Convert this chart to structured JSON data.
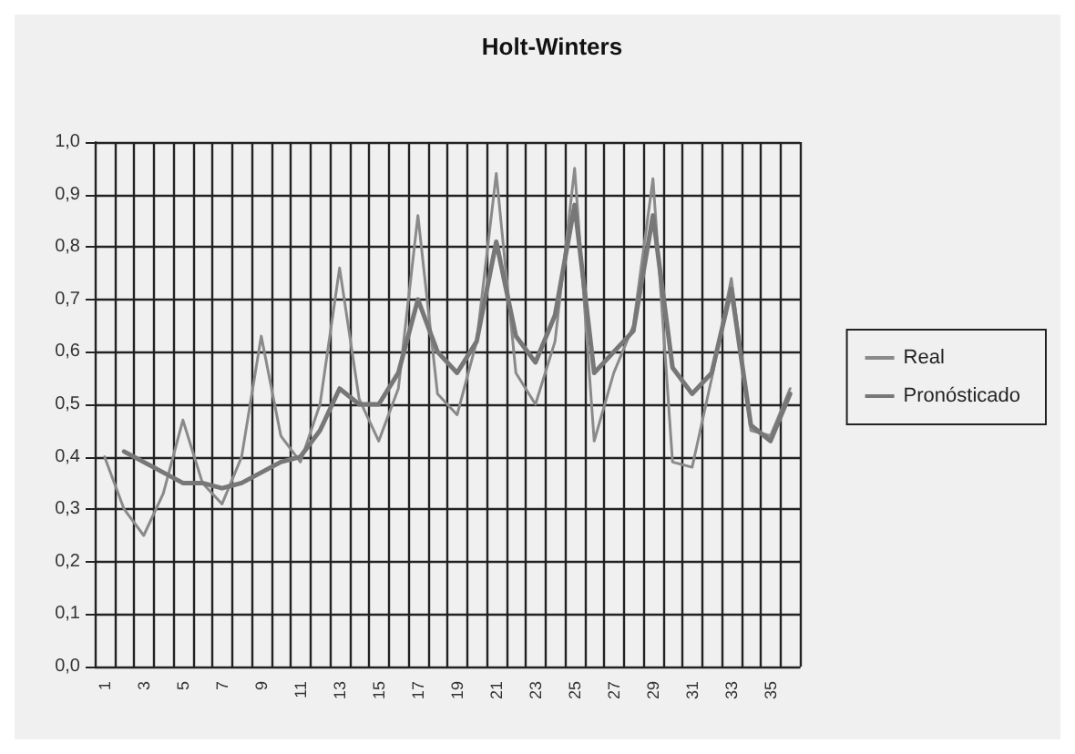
{
  "chart_data": {
    "type": "line",
    "title": "Holt-Winters",
    "categories": [
      "1",
      null,
      "3",
      null,
      "5",
      null,
      "7",
      null,
      "9",
      null,
      "11",
      null,
      "13",
      null,
      "15",
      null,
      "17",
      null,
      "19",
      null,
      "21",
      null,
      "23",
      null,
      "25",
      null,
      "27",
      null,
      "29",
      null,
      "31",
      null,
      "33",
      null,
      "35",
      null
    ],
    "series": [
      {
        "name": "Real",
        "color": "#8a8a8a",
        "values": [
          0.4,
          0.3,
          0.25,
          0.33,
          0.47,
          0.35,
          0.31,
          0.4,
          0.63,
          0.44,
          0.39,
          0.5,
          0.76,
          0.51,
          0.43,
          0.53,
          0.86,
          0.52,
          0.48,
          0.62,
          0.94,
          0.56,
          0.5,
          0.62,
          0.95,
          0.43,
          0.56,
          0.65,
          0.93,
          0.39,
          0.38,
          0.55,
          0.74,
          0.45,
          0.44,
          0.53
        ]
      },
      {
        "name": "Pronósticado",
        "color": "#777777",
        "values": [
          null,
          0.41,
          0.39,
          0.37,
          0.35,
          0.35,
          0.34,
          0.35,
          0.37,
          0.39,
          0.4,
          0.45,
          0.53,
          0.5,
          0.5,
          0.56,
          0.7,
          0.6,
          0.56,
          0.62,
          0.81,
          0.63,
          0.58,
          0.67,
          0.88,
          0.56,
          0.6,
          0.64,
          0.86,
          0.57,
          0.52,
          0.56,
          0.72,
          0.46,
          0.43,
          0.52
        ]
      }
    ],
    "ylim": [
      0,
      1
    ],
    "yticks": [
      {
        "value": 0,
        "label": "0,0"
      },
      {
        "value": 0.1,
        "label": "0,1"
      },
      {
        "value": 0.2,
        "label": "0,2"
      },
      {
        "value": 0.3,
        "label": "0,3"
      },
      {
        "value": 0.4,
        "label": "0,4"
      },
      {
        "value": 0.5,
        "label": "0,5"
      },
      {
        "value": 0.6,
        "label": "0,6"
      },
      {
        "value": 0.7,
        "label": "0,7"
      },
      {
        "value": 0.8,
        "label": "0,8"
      },
      {
        "value": 0.9,
        "label": "0,9"
      },
      {
        "value": 1,
        "label": "1,0"
      }
    ],
    "grid": true,
    "legend": "right",
    "marker": "none",
    "line_style": "solid"
  }
}
